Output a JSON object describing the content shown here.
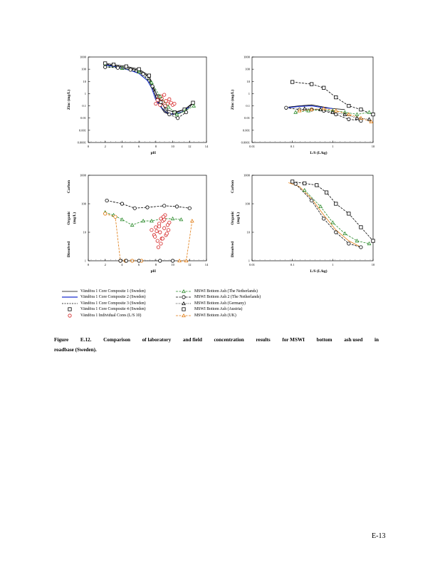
{
  "colors": {
    "core1": "#000000",
    "core2": "#1a2fcf",
    "core3": "#000000",
    "core4": "#000000",
    "individual": "#d42020",
    "netherlands": "#2a8a2a",
    "netherlands2": "#000000",
    "germany": "#000000",
    "austria": "#000000",
    "uk": "#e07a10"
  },
  "chart_data": [
    {
      "type": "line",
      "name": "zinc-vs-ph",
      "xlabel": "pH",
      "ylabel": [
        "Zinc",
        "(mg/L)"
      ],
      "scale_y": "log",
      "xlim": [
        0,
        14
      ],
      "ylim": [
        0.0001,
        1000
      ],
      "xticks": [
        "0",
        "2",
        "4",
        "6",
        "8",
        "10",
        "12",
        "14"
      ],
      "yticks": [
        "0.0001",
        "0.001",
        "0.01",
        "0.1",
        "1",
        "10",
        "100",
        "1000"
      ],
      "series": [
        {
          "name": "Vändöra 1 Core Composite 1 (Sweden)",
          "key": "core1",
          "marker": "none",
          "dash": "",
          "x": [
            2,
            2.8,
            4,
            5,
            6,
            7,
            7.5,
            8,
            8.5,
            9,
            9.6,
            10.2,
            11,
            11.8,
            12.4
          ],
          "y": [
            250,
            200,
            150,
            120,
            80,
            30,
            8,
            0.5,
            0.1,
            0.03,
            0.02,
            0.025,
            0.04,
            0.08,
            0.15
          ]
        },
        {
          "name": "Vändöra 1 Core Composite 2 (Sweden)",
          "key": "core2",
          "marker": "none",
          "dash": "",
          "x": [
            2,
            3,
            4,
            5,
            6,
            7,
            7.5,
            8,
            8.6,
            9.2,
            10,
            11,
            12
          ],
          "y": [
            220,
            170,
            120,
            80,
            45,
            12,
            3,
            0.3,
            0.08,
            0.03,
            0.02,
            0.03,
            0.08
          ]
        },
        {
          "name": "Vändöra 1 Core Composite 3 (Sweden)",
          "key": "core3",
          "marker": "none",
          "dash": "2,1.5",
          "x": [
            2,
            3,
            4,
            5,
            6,
            7,
            8,
            8.8,
            9.5,
            10.5,
            11.5,
            12.3
          ],
          "y": [
            260,
            210,
            160,
            110,
            70,
            25,
            0.6,
            0.06,
            0.02,
            0.02,
            0.04,
            0.12
          ]
        },
        {
          "name": "Vändöra 1 Core Composite 4 (Sweden)",
          "key": "core4",
          "marker": "square",
          "dash": "",
          "x": [
            2,
            3,
            4.5,
            6,
            7.2,
            8.2,
            9.2,
            10.2,
            11.4,
            12.4
          ],
          "y": [
            300,
            240,
            170,
            100,
            30,
            0.6,
            0.05,
            0.03,
            0.05,
            0.18
          ]
        },
        {
          "name": "Vändöra 1 Individual Cores (L/S 10)",
          "key": "individual",
          "marker": "circle",
          "dash": "none",
          "x": [
            8.0,
            8.2,
            8.4,
            8.5,
            8.7,
            8.8,
            9.0,
            9.2,
            9.4,
            9.6,
            9.8,
            10.0,
            10.2,
            8.6,
            9.1
          ],
          "y": [
            0.15,
            0.3,
            0.5,
            0.12,
            0.4,
            0.2,
            0.8,
            0.25,
            0.15,
            0.35,
            0.18,
            0.12,
            0.15,
            0.6,
            0.1
          ]
        },
        {
          "name": "MSWI Bottom Ash (The Netherlands)",
          "key": "netherlands",
          "marker": "triangle",
          "dash": "3,1.5",
          "x": [
            2,
            4,
            6,
            7.5,
            8.5,
            9.5,
            10.5,
            11.5,
            12.5
          ],
          "y": [
            180,
            120,
            60,
            8,
            0.6,
            0.08,
            0.02,
            0.04,
            0.1
          ]
        },
        {
          "name": "MSWI Bottom Ash 2 (The Netherlands)",
          "key": "netherlands2",
          "marker": "circle",
          "dash": "3,1.5",
          "x": [
            2,
            3.5,
            5,
            6.5,
            7.6,
            8.6,
            9.6,
            10.6,
            11.6
          ],
          "y": [
            150,
            130,
            90,
            40,
            4,
            0.2,
            0.02,
            0.01,
            0.03
          ]
        }
      ]
    },
    {
      "type": "line",
      "name": "zinc-vs-ls",
      "xlabel": "L/S (L/kg)",
      "ylabel": [
        "Zinc",
        "(mg/L)"
      ],
      "scale_x": "log",
      "scale_y": "log",
      "xlim": [
        0.01,
        10
      ],
      "ylim": [
        0.0001,
        1000
      ],
      "xticks": [
        "0.01",
        "0.1",
        "1",
        "10"
      ],
      "yticks": [
        "0.0001",
        "0.001",
        "0.01",
        "0.1",
        "1",
        "10",
        "100",
        "1000"
      ],
      "series": [
        {
          "name": "MSWI Bottom Ash (Austria)",
          "key": "austria",
          "marker": "square",
          "dash": "3,1.5",
          "x": [
            0.1,
            0.3,
            0.6,
            1.2,
            2.5,
            5,
            10
          ],
          "y": [
            9,
            6,
            3,
            0.5,
            0.1,
            0.05,
            0.02
          ]
        },
        {
          "name": "Vändöra 1 Core Composite 1 (Sweden)",
          "key": "core1",
          "marker": "none",
          "dash": "",
          "x": [
            0.08,
            0.15,
            0.3,
            0.6,
            1.0,
            2.0
          ],
          "y": [
            0.08,
            0.1,
            0.12,
            0.08,
            0.06,
            0.05
          ]
        },
        {
          "name": "Vändöra 1 Core Composite 2 (Sweden)",
          "key": "core2",
          "marker": "none",
          "dash": "",
          "x": [
            0.08,
            0.15,
            0.3,
            0.6,
            1.0
          ],
          "y": [
            0.07,
            0.09,
            0.1,
            0.07,
            0.06
          ]
        },
        {
          "name": "MSWI Bottom Ash 2 (The Netherlands)",
          "key": "netherlands2",
          "marker": "circle",
          "dash": "3,1.5",
          "x": [
            0.07,
            0.15,
            0.3,
            0.6,
            1.2,
            2.5,
            5
          ],
          "y": [
            0.07,
            0.05,
            0.05,
            0.04,
            0.02,
            0.008,
            0.006
          ]
        },
        {
          "name": "MSWI Bottom Ash (The Netherlands)",
          "key": "netherlands",
          "marker": "triangle",
          "dash": "3,1.5",
          "x": [
            0.12,
            0.25,
            0.5,
            1.0,
            2.0,
            4.0,
            8.0
          ],
          "y": [
            0.03,
            0.04,
            0.05,
            0.04,
            0.03,
            0.02,
            0.03
          ]
        },
        {
          "name": "MSWI Bottom Ash (UK)",
          "key": "uk",
          "marker": "triangle",
          "dash": "3,1.5",
          "x": [
            0.15,
            0.3,
            0.6,
            1.2,
            2.5,
            5,
            9
          ],
          "y": [
            0.04,
            0.05,
            0.06,
            0.04,
            0.02,
            0.01,
            0.005
          ]
        },
        {
          "name": "MSWI Bottom Ash (Germany)",
          "key": "germany",
          "marker": "triangle",
          "dash": "1,1.5",
          "x": [
            0.2,
            0.5,
            1.0,
            2.0,
            4.0,
            8.0
          ],
          "y": [
            0.06,
            0.05,
            0.03,
            0.02,
            0.01,
            0.008
          ]
        }
      ]
    },
    {
      "type": "line",
      "name": "doc-vs-ph",
      "xlabel": "pH",
      "ylabel": [
        "Dissolved",
        "Organic",
        "Carbon",
        "(mg/L)"
      ],
      "scale_y": "log",
      "xlim": [
        0,
        14
      ],
      "ylim": [
        1,
        1000
      ],
      "xticks": [
        "0",
        "2",
        "4",
        "6",
        "8",
        "10",
        "12",
        "14"
      ],
      "yticks": [
        "1",
        "10",
        "100",
        "1000"
      ],
      "series": [
        {
          "name": "MSWI Bottom Ash 2 (The Netherlands)",
          "key": "netherlands2",
          "marker": "circle",
          "dash": "3,1.5",
          "x": [
            2.2,
            4,
            5.5,
            7,
            9,
            10.5,
            12
          ],
          "y": [
            130,
            100,
            70,
            75,
            85,
            80,
            70
          ]
        },
        {
          "name": "MSWI Bottom Ash (The Netherlands)",
          "key": "netherlands",
          "marker": "triangle",
          "dash": "3,1.5",
          "x": [
            2,
            3,
            4,
            5.2,
            6.5,
            7.5,
            8.8,
            10,
            11
          ],
          "y": [
            50,
            40,
            28,
            18,
            25,
            25,
            30,
            30,
            28
          ]
        },
        {
          "name": "Vändöra 1 Individual Cores (L/S 10)",
          "key": "individual",
          "marker": "circle",
          "dash": "none",
          "x": [
            7.5,
            7.8,
            8.0,
            8.2,
            8.4,
            8.5,
            8.6,
            8.7,
            8.8,
            9.0,
            9.1,
            9.2,
            9.4,
            9.5,
            9.6,
            8.3,
            8.9,
            9.3,
            7.9,
            8.1,
            8.6,
            9.0,
            8.4,
            8.8
          ],
          "y": [
            12,
            8,
            15,
            5,
            20,
            10,
            30,
            6,
            25,
            14,
            40,
            8,
            18,
            12,
            22,
            3,
            35,
            9,
            7,
            11,
            4,
            28,
            16,
            6
          ]
        },
        {
          "name": "MSWI Bottom Ash (UK)",
          "key": "uk",
          "marker": "circle",
          "dash": "3,1.5",
          "x": [
            2,
            3.2,
            3.8,
            4.4,
            5.2,
            6.3
          ],
          "y": [
            45,
            35,
            1,
            1,
            1,
            1
          ]
        },
        {
          "name": "Vändöra 1 Core Composite 3 (Sweden)",
          "key": "core3",
          "marker": "circle",
          "dash": "1,1.5",
          "x": [
            3.8,
            4.5,
            6,
            8.5,
            10
          ],
          "y": [
            1,
            1,
            1,
            1,
            1
          ]
        },
        {
          "name": "MSWI Bottom Ash (UK)",
          "key": "uk",
          "marker": "triangle",
          "dash": "3,1.5",
          "x": [
            10.8,
            11.6,
            12.3
          ],
          "y": [
            1,
            1,
            25
          ]
        }
      ]
    },
    {
      "type": "line",
      "name": "doc-vs-ls",
      "xlabel": "L/S (L/kg)",
      "ylabel": [
        "Dissolved",
        "Organic",
        "Carbon",
        "(mg/L)"
      ],
      "scale_x": "log",
      "scale_y": "log",
      "xlim": [
        0.01,
        10
      ],
      "ylim": [
        1,
        1000
      ],
      "xticks": [
        "0.01",
        "0.1",
        "1",
        "10"
      ],
      "yticks": [
        "1",
        "10",
        "100",
        "1000"
      ],
      "series": [
        {
          "name": "MSWI Bottom Ash (Austria)",
          "key": "austria",
          "marker": "square",
          "dash": "3,1.5",
          "x": [
            0.1,
            0.2,
            0.4,
            0.7,
            1.2,
            2.5,
            5,
            10
          ],
          "y": [
            600,
            520,
            450,
            250,
            100,
            45,
            15,
            5
          ]
        },
        {
          "name": "MSWI Bottom Ash (UK)",
          "key": "uk",
          "marker": "none",
          "dash": "",
          "x": [
            0.08,
            0.15,
            0.3,
            0.6,
            1.2,
            2.5,
            5
          ],
          "y": [
            550,
            400,
            150,
            40,
            12,
            5,
            3
          ]
        },
        {
          "name": "MSWI Bottom Ash 2 (The Netherlands)",
          "key": "netherlands2",
          "marker": "circle",
          "dash": "3,1.5",
          "x": [
            0.12,
            0.3,
            0.6,
            1.2,
            2.5,
            5
          ],
          "y": [
            500,
            130,
            30,
            10,
            4,
            3
          ]
        },
        {
          "name": "MSWI Bottom Ash (The Netherlands)",
          "key": "netherlands",
          "marker": "triangle",
          "dash": "3,1.5",
          "x": [
            0.2,
            0.5,
            1.0,
            2.0,
            4.0,
            8.0
          ],
          "y": [
            300,
            80,
            22,
            9,
            5,
            4
          ]
        }
      ]
    }
  ],
  "legend": {
    "left": [
      {
        "label": "Vändöra 1 Core Composite 1 (Sweden)",
        "key": "core1",
        "marker": "none",
        "dash": ""
      },
      {
        "label": "Vändöra 1 Core Composite 2 (Sweden)",
        "key": "core2",
        "marker": "none",
        "dash": ""
      },
      {
        "label": "Vändöra 1 Core Composite 3 (Sweden)",
        "key": "core3",
        "marker": "none",
        "dash": "2,1.5"
      },
      {
        "label": "Vändöra 1 Core Composite 4 (Sweden)",
        "key": "core4",
        "marker": "square",
        "dash": "none"
      },
      {
        "label": "Vändöra 1 Individual Cores (L/S 10)",
        "key": "individual",
        "marker": "circle",
        "dash": "none"
      }
    ],
    "right": [
      {
        "label": "MSWI Bottom Ash (The Netherlands)",
        "key": "netherlands",
        "marker": "triangle",
        "dash": "3,1.5"
      },
      {
        "label": "MSWI Bottom Ash 2 (The Netherlands)",
        "key": "netherlands2",
        "marker": "circle",
        "dash": "3,1.5"
      },
      {
        "label": "MSWI Bottom Ash (Germany)",
        "key": "germany",
        "marker": "triangle",
        "dash": "1,1.5"
      },
      {
        "label": "MSWI Bottom Ash (Austria)",
        "key": "austria",
        "marker": "square",
        "dash": "none"
      },
      {
        "label": "MSWI Bottom Ash (UK)",
        "key": "uk",
        "marker": "triangle",
        "dash": "3,1.5"
      }
    ]
  },
  "caption": {
    "line1": [
      "Figure",
      "E.12.",
      "Comparison",
      "of laboratory",
      "and field",
      "concentration",
      "results",
      "for MSWI",
      "bottom",
      "ash used",
      "in"
    ],
    "line2": "roadbase (Sweden)."
  },
  "page_number": "E-13"
}
